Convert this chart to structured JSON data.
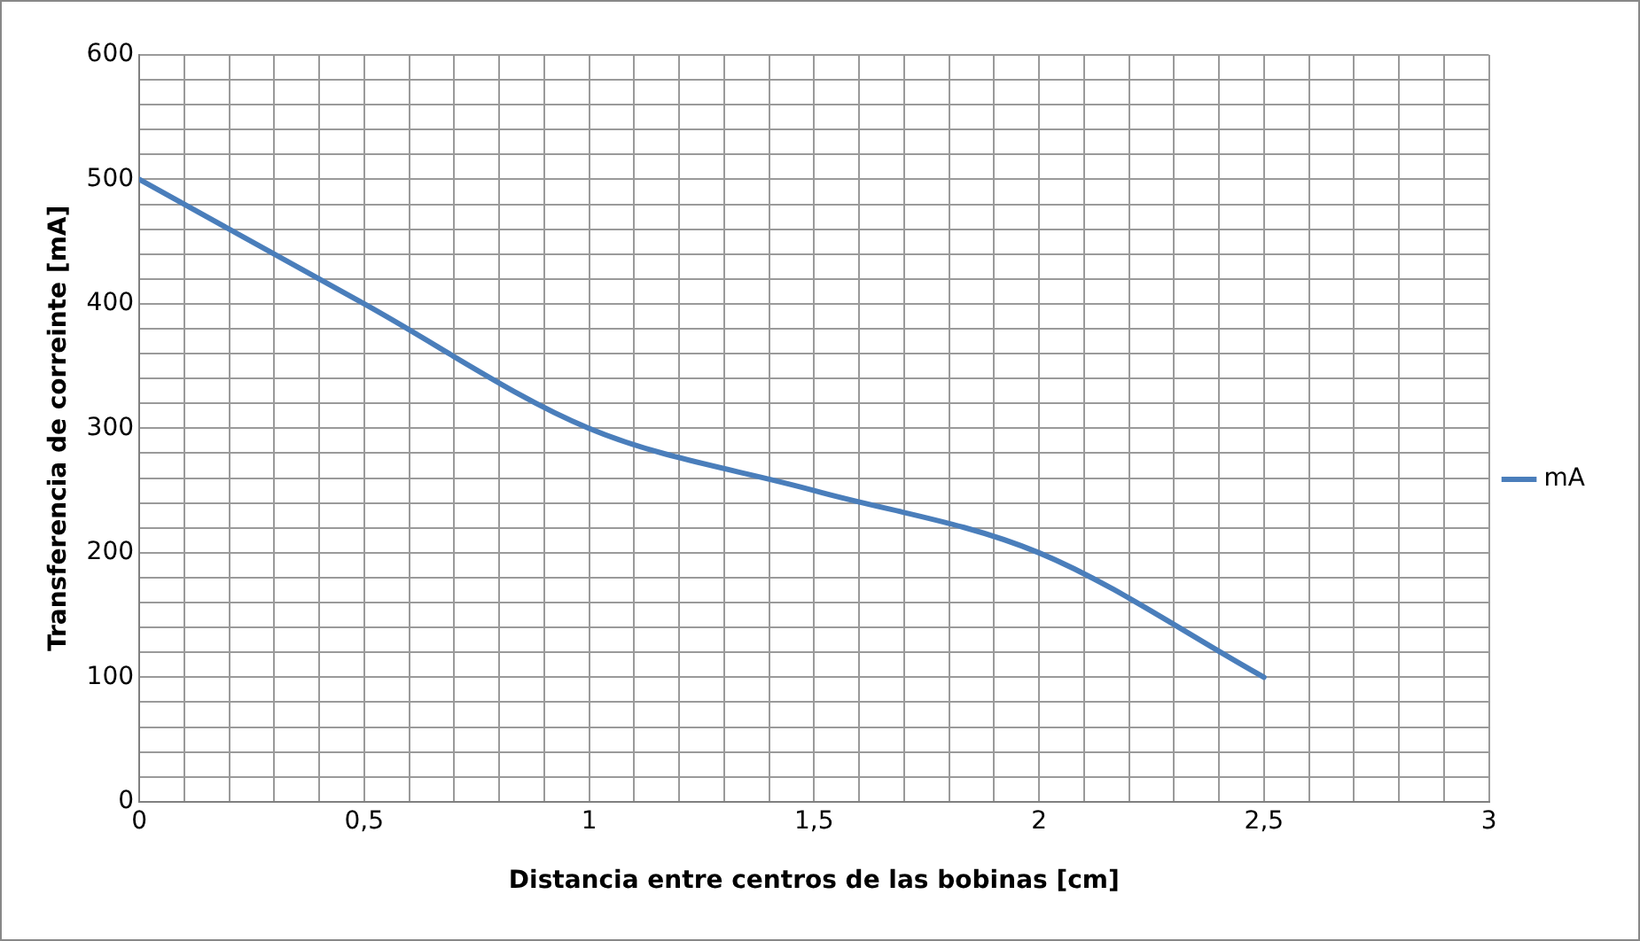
{
  "chart_data": {
    "type": "line",
    "xlabel": "Distancia entre centros de las bobinas [cm]",
    "ylabel": "Transferencia de correinte [mA]",
    "x": [
      0,
      0.5,
      1,
      1.5,
      2,
      2.5
    ],
    "series": [
      {
        "name": "mA",
        "color": "#4a7ebb",
        "values": [
          500,
          400,
          300,
          250,
          200,
          100
        ]
      }
    ],
    "xlim": [
      0,
      3
    ],
    "xticks": [
      0,
      {
        "value": 0.1,
        "label": null
      },
      {
        "value": 0.2,
        "label": null
      },
      {
        "value": 0.3,
        "label": null
      },
      {
        "value": 0.4,
        "label": null
      },
      {
        "value": 0.5,
        "label": "0,5"
      },
      {
        "value": 0.6,
        "label": null
      },
      {
        "value": 0.7,
        "label": null
      },
      {
        "value": 0.8,
        "label": null
      },
      {
        "value": 0.9,
        "label": null
      },
      1,
      {
        "value": 1.1,
        "label": null
      },
      {
        "value": 1.2,
        "label": null
      },
      {
        "value": 1.3,
        "label": null
      },
      {
        "value": 1.4,
        "label": null
      },
      {
        "value": 1.5,
        "label": "1,5"
      },
      {
        "value": 1.6,
        "label": null
      },
      {
        "value": 1.7,
        "label": null
      },
      {
        "value": 1.8,
        "label": null
      },
      {
        "value": 1.9,
        "label": null
      },
      2,
      {
        "value": 2.1,
        "label": null
      },
      {
        "value": 2.2,
        "label": null
      },
      {
        "value": 2.3,
        "label": null
      },
      {
        "value": 2.4,
        "label": null
      },
      {
        "value": 2.5,
        "label": "2,5"
      },
      {
        "value": 2.6,
        "label": null
      },
      {
        "value": 2.7,
        "label": null
      },
      {
        "value": 2.8,
        "label": null
      },
      {
        "value": 2.9,
        "label": null
      },
      3
    ],
    "ylim": [
      0,
      600
    ],
    "yticks": [
      0,
      {
        "value": 20,
        "label": null
      },
      {
        "value": 40,
        "label": null
      },
      {
        "value": 60,
        "label": null
      },
      {
        "value": 80,
        "label": null
      },
      100,
      {
        "value": 120,
        "label": null
      },
      {
        "value": 140,
        "label": null
      },
      {
        "value": 160,
        "label": null
      },
      {
        "value": 180,
        "label": null
      },
      200,
      {
        "value": 220,
        "label": null
      },
      {
        "value": 240,
        "label": null
      },
      {
        "value": 260,
        "label": null
      },
      {
        "value": 280,
        "label": null
      },
      300,
      {
        "value": 320,
        "label": null
      },
      {
        "value": 340,
        "label": null
      },
      {
        "value": 360,
        "label": null
      },
      {
        "value": 380,
        "label": null
      },
      400,
      {
        "value": 420,
        "label": null
      },
      {
        "value": 440,
        "label": null
      },
      {
        "value": 460,
        "label": null
      },
      {
        "value": 480,
        "label": null
      },
      500,
      {
        "value": 520,
        "label": null
      },
      {
        "value": 540,
        "label": null
      },
      {
        "value": 560,
        "label": null
      },
      {
        "value": 580,
        "label": null
      },
      600
    ],
    "grid": true,
    "legend": "right",
    "marker": "none",
    "line_style": "solid"
  }
}
